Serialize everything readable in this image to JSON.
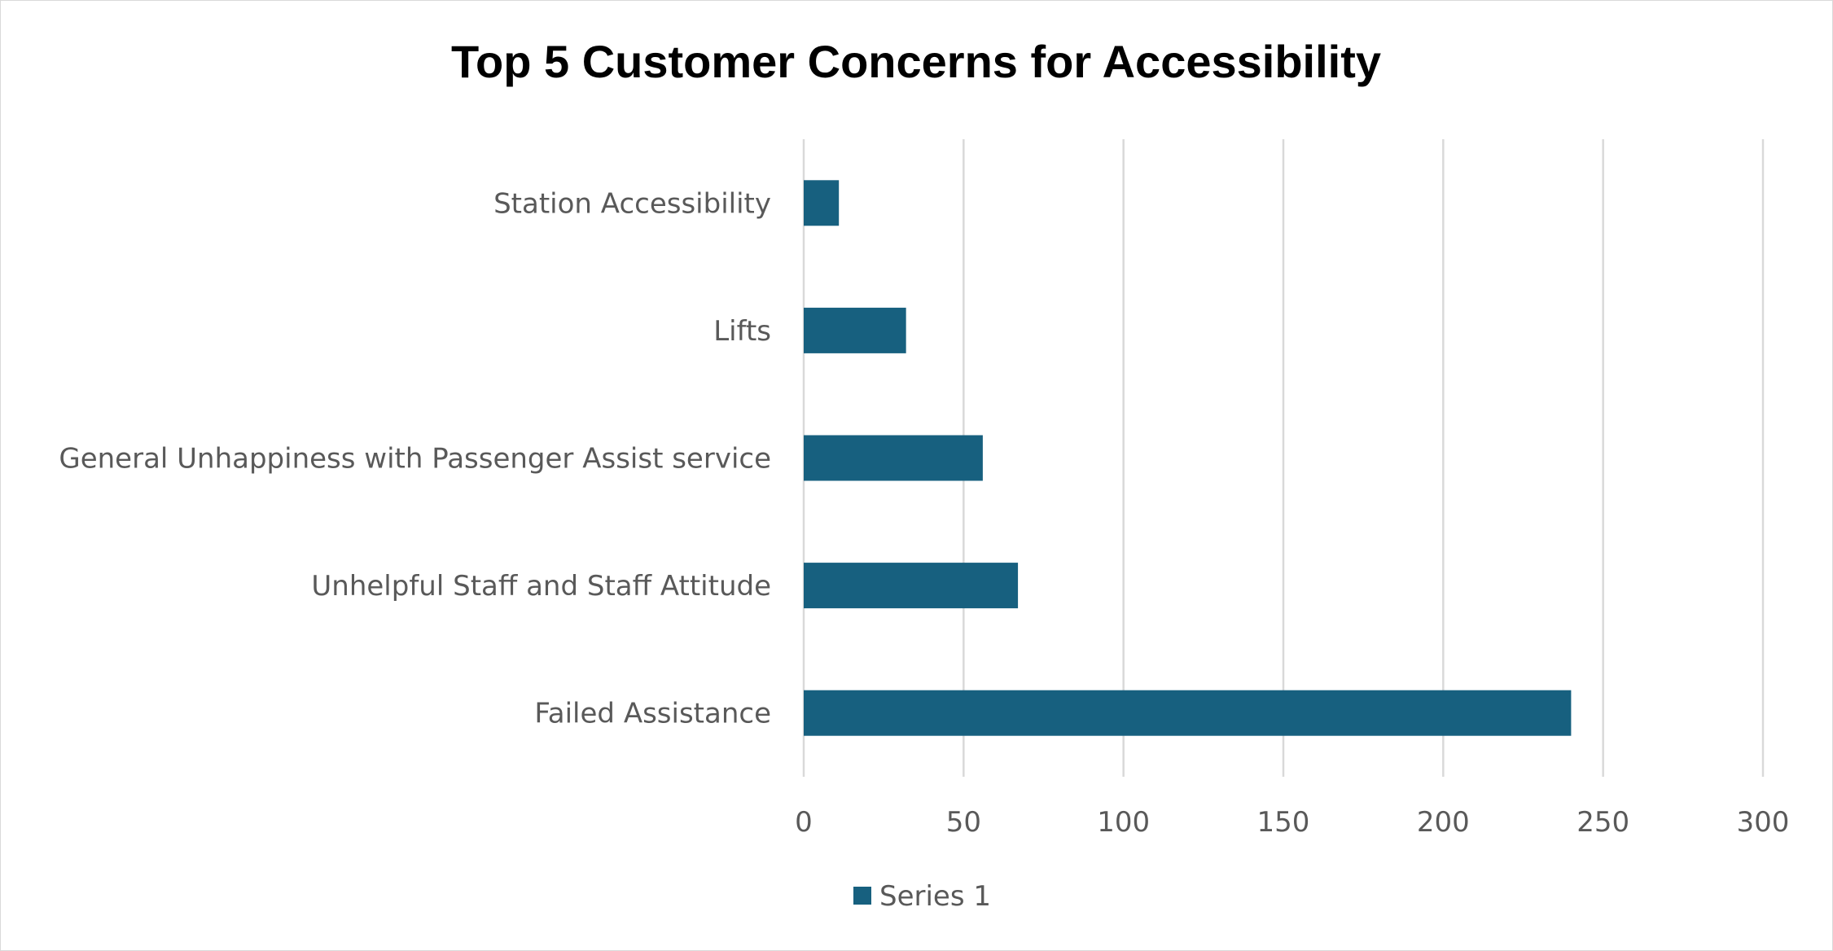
{
  "chart_data": {
    "type": "bar",
    "orientation": "horizontal",
    "title": "Top 5 Customer Concerns for Accessibility",
    "xlabel": "",
    "ylabel": "",
    "categories": [
      "Station Accessibility",
      "Lifts",
      "General Unhappiness with Passenger Assist service",
      "Unhelpful Staff and Staff Attitude",
      "Failed Assistance"
    ],
    "series": [
      {
        "name": "Series 1",
        "values": [
          11,
          32,
          56,
          67,
          240
        ],
        "color": "#17607f"
      }
    ],
    "xlim": [
      0,
      300
    ],
    "ticks": [
      "0",
      "50",
      "100",
      "150",
      "200",
      "250",
      "300"
    ],
    "tick_values": [
      0,
      50,
      100,
      150,
      200,
      250,
      300
    ],
    "grid": true,
    "gridline_color": "#d9d9d9",
    "legend": "bottom"
  }
}
